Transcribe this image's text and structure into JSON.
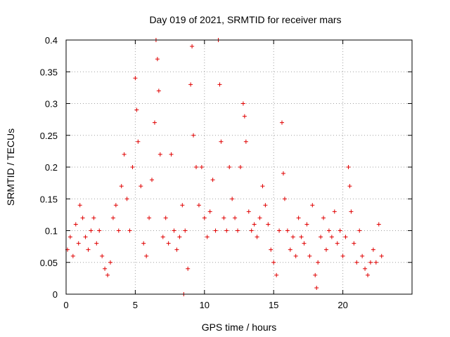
{
  "chart_data": {
    "type": "scatter",
    "title": "Day 019 of 2021, SRMTID for receiver mars",
    "xlabel": "GPS time / hours",
    "ylabel": "SRMTID / TECUs",
    "xlim": [
      0,
      25
    ],
    "ylim": [
      0,
      0.4
    ],
    "xticks": [
      0,
      5,
      10,
      15,
      20
    ],
    "xtick_labels": [
      "0",
      "5",
      "10",
      "15",
      "20"
    ],
    "yticks": [
      0,
      0.05,
      0.1,
      0.15,
      0.2,
      0.25,
      0.3,
      0.35,
      0.4
    ],
    "ytick_labels": [
      "0",
      "0.05",
      "0.1",
      "0.15",
      "0.2",
      "0.25",
      "0.3",
      "0.35",
      "0.4"
    ],
    "grid": true,
    "marker": "+",
    "marker_color": "#e00000",
    "series": [
      {
        "name": "SRMTID",
        "points": [
          [
            0.1,
            0.07
          ],
          [
            0.3,
            0.09
          ],
          [
            0.5,
            0.06
          ],
          [
            0.7,
            0.11
          ],
          [
            0.9,
            0.08
          ],
          [
            1.0,
            0.14
          ],
          [
            1.2,
            0.12
          ],
          [
            1.4,
            0.09
          ],
          [
            1.6,
            0.07
          ],
          [
            1.8,
            0.1
          ],
          [
            2.0,
            0.12
          ],
          [
            2.2,
            0.08
          ],
          [
            2.4,
            0.1
          ],
          [
            2.6,
            0.06
          ],
          [
            2.8,
            0.04
          ],
          [
            3.0,
            0.03
          ],
          [
            3.2,
            0.05
          ],
          [
            3.4,
            0.12
          ],
          [
            3.6,
            0.14
          ],
          [
            3.8,
            0.1
          ],
          [
            4.0,
            0.17
          ],
          [
            4.2,
            0.22
          ],
          [
            4.4,
            0.15
          ],
          [
            4.6,
            0.1
          ],
          [
            4.8,
            0.2
          ],
          [
            5.0,
            0.34
          ],
          [
            5.1,
            0.29
          ],
          [
            5.2,
            0.24
          ],
          [
            5.4,
            0.17
          ],
          [
            5.6,
            0.08
          ],
          [
            5.8,
            0.06
          ],
          [
            6.0,
            0.12
          ],
          [
            6.2,
            0.18
          ],
          [
            6.4,
            0.27
          ],
          [
            6.5,
            0.4
          ],
          [
            6.6,
            0.37
          ],
          [
            6.7,
            0.32
          ],
          [
            6.8,
            0.22
          ],
          [
            7.0,
            0.09
          ],
          [
            7.2,
            0.12
          ],
          [
            7.4,
            0.08
          ],
          [
            7.6,
            0.22
          ],
          [
            7.8,
            0.1
          ],
          [
            8.0,
            0.07
          ],
          [
            8.2,
            0.09
          ],
          [
            8.4,
            0.14
          ],
          [
            8.6,
            0.1
          ],
          [
            8.8,
            0.04
          ],
          [
            9.0,
            0.33
          ],
          [
            9.1,
            0.39
          ],
          [
            9.2,
            0.25
          ],
          [
            9.4,
            0.2
          ],
          [
            9.6,
            0.14
          ],
          [
            9.8,
            0.2
          ],
          [
            10.0,
            0.12
          ],
          [
            10.2,
            0.09
          ],
          [
            10.4,
            0.13
          ],
          [
            10.6,
            0.18
          ],
          [
            10.8,
            0.1
          ],
          [
            11.0,
            0.4
          ],
          [
            11.1,
            0.33
          ],
          [
            11.2,
            0.24
          ],
          [
            11.4,
            0.12
          ],
          [
            11.6,
            0.1
          ],
          [
            11.8,
            0.2
          ],
          [
            12.0,
            0.15
          ],
          [
            12.2,
            0.12
          ],
          [
            12.4,
            0.1
          ],
          [
            12.6,
            0.2
          ],
          [
            12.8,
            0.3
          ],
          [
            12.9,
            0.28
          ],
          [
            13.0,
            0.24
          ],
          [
            13.2,
            0.13
          ],
          [
            13.4,
            0.1
          ],
          [
            13.6,
            0.11
          ],
          [
            13.8,
            0.09
          ],
          [
            14.0,
            0.12
          ],
          [
            14.2,
            0.17
          ],
          [
            14.4,
            0.14
          ],
          [
            14.6,
            0.11
          ],
          [
            14.8,
            0.07
          ],
          [
            15.0,
            0.05
          ],
          [
            15.2,
            0.03
          ],
          [
            15.4,
            0.1
          ],
          [
            15.6,
            0.27
          ],
          [
            15.7,
            0.19
          ],
          [
            15.8,
            0.15
          ],
          [
            16.0,
            0.1
          ],
          [
            16.2,
            0.07
          ],
          [
            16.4,
            0.09
          ],
          [
            16.6,
            0.06
          ],
          [
            16.8,
            0.12
          ],
          [
            17.0,
            0.09
          ],
          [
            17.2,
            0.08
          ],
          [
            17.4,
            0.11
          ],
          [
            17.6,
            0.06
          ],
          [
            17.8,
            0.14
          ],
          [
            18.0,
            0.03
          ],
          [
            18.1,
            0.01
          ],
          [
            18.2,
            0.05
          ],
          [
            18.4,
            0.09
          ],
          [
            18.6,
            0.12
          ],
          [
            18.8,
            0.07
          ],
          [
            19.0,
            0.1
          ],
          [
            19.2,
            0.09
          ],
          [
            19.4,
            0.13
          ],
          [
            19.6,
            0.08
          ],
          [
            19.8,
            0.1
          ],
          [
            20.0,
            0.06
          ],
          [
            20.2,
            0.09
          ],
          [
            20.4,
            0.2
          ],
          [
            20.5,
            0.17
          ],
          [
            20.6,
            0.13
          ],
          [
            20.8,
            0.08
          ],
          [
            21.0,
            0.05
          ],
          [
            21.2,
            0.1
          ],
          [
            21.4,
            0.06
          ],
          [
            21.6,
            0.04
          ],
          [
            21.8,
            0.03
          ],
          [
            22.0,
            0.05
          ],
          [
            22.2,
            0.07
          ],
          [
            22.4,
            0.05
          ],
          [
            22.6,
            0.11
          ],
          [
            22.8,
            0.06
          ],
          [
            8.5,
            0.0
          ]
        ]
      }
    ]
  }
}
